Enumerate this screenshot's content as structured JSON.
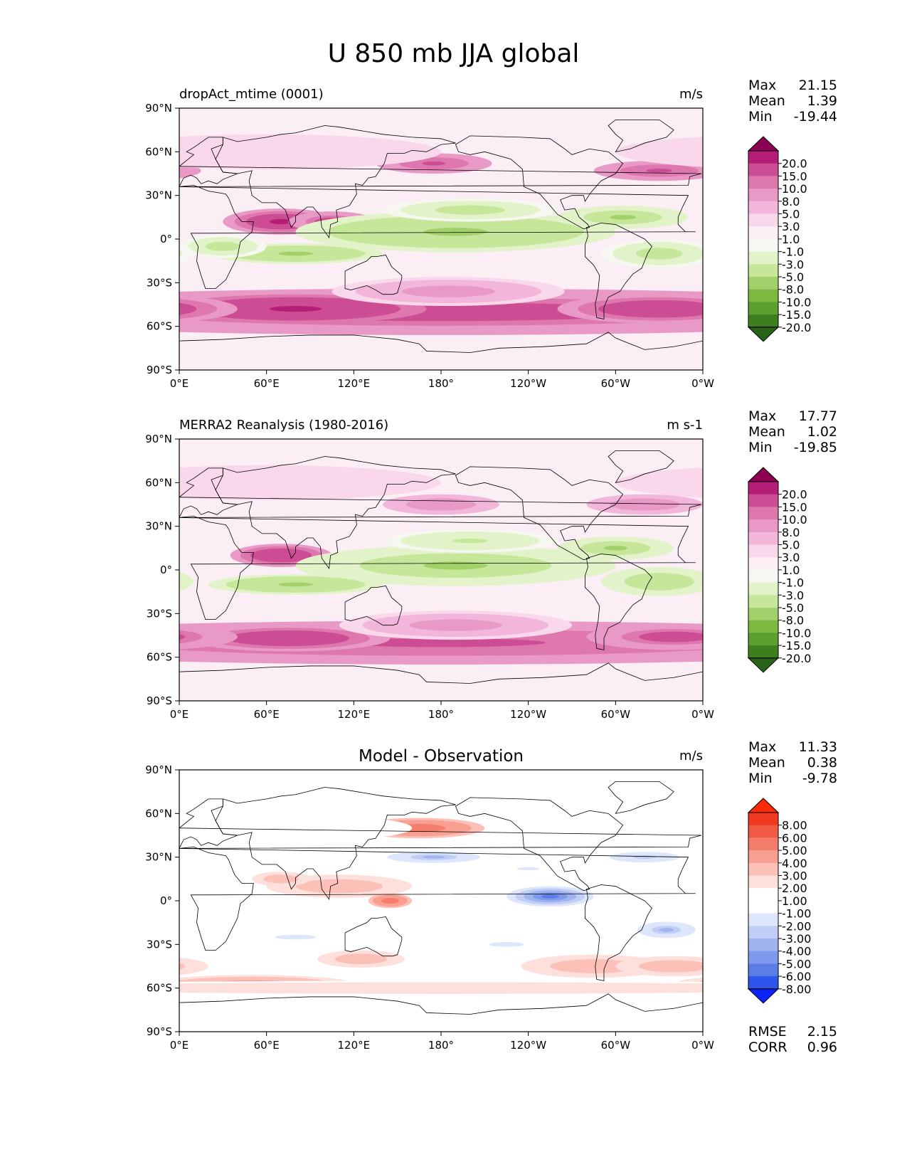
{
  "figure_title": "U 850 mb JJA global",
  "colors": {
    "div_pg": [
      "#276419",
      "#3f7e1f",
      "#5c9e30",
      "#7db940",
      "#a2d06b",
      "#c6e69a",
      "#e2f3c9",
      "#f5f7f0",
      "#fbeef5",
      "#f8d8ea",
      "#f1b6da",
      "#e899c6",
      "#de77ae",
      "#cc4d94",
      "#b51e76",
      "#8e0152"
    ],
    "diff": [
      "#0b24fb",
      "#2e55ee",
      "#5b7ee6",
      "#7f9aec",
      "#a0b4f0",
      "#c0cef6",
      "#dde6fb",
      "#ffffff",
      "#ffffff",
      "#fde0dc",
      "#fcc0b8",
      "#f99f91",
      "#f57d6b",
      "#f25944",
      "#ef3a20",
      "#fb2b08"
    ],
    "land": "#f7f7f4"
  },
  "chart_data": [
    {
      "type": "heatmap",
      "title_left": "dropAct_mtime (0001)",
      "title_center": "",
      "units": "m/s",
      "stats": [
        {
          "label": "Max",
          "value": "21.15"
        },
        {
          "label": "Mean",
          "value": "1.39"
        },
        {
          "label": "Min",
          "value": "-19.44"
        }
      ],
      "colorbar_levels": [
        "20.0",
        "15.0",
        "10.0",
        "8.0",
        "5.0",
        "3.0",
        "1.0",
        "-1.0",
        "-3.0",
        "-5.0",
        "-8.0",
        "-10.0",
        "-15.0",
        "-20.0"
      ],
      "colorbar_palette": "div_pg",
      "x_ticks": [
        "0°E",
        "60°E",
        "120°E",
        "180°",
        "120°W",
        "60°W",
        "0°W"
      ],
      "y_ticks": [
        "90°N",
        "60°N",
        "30°N",
        "0°",
        "30°S",
        "60°S",
        "90°S"
      ],
      "xlim": [
        0,
        360
      ],
      "ylim": [
        -90,
        90
      ],
      "footer_stats": [],
      "features": [
        {
          "lon": 180,
          "lat": -50,
          "dlon": 360,
          "dlat": 16,
          "value": 12
        },
        {
          "lon": 80,
          "lat": -48,
          "dlon": 90,
          "dlat": 10,
          "value": 17
        },
        {
          "lon": 330,
          "lat": -48,
          "dlon": 70,
          "dlat": 10,
          "value": 14
        },
        {
          "lon": 185,
          "lat": -36,
          "dlon": 80,
          "dlat": 10,
          "value": 6
        },
        {
          "lon": 70,
          "lat": 12,
          "dlon": 40,
          "dlat": 9,
          "value": 16
        },
        {
          "lon": 105,
          "lat": 12,
          "dlon": 30,
          "dlat": 7,
          "value": 12
        },
        {
          "lon": 190,
          "lat": 5,
          "dlon": 110,
          "dlat": 14,
          "value": -9
        },
        {
          "lon": 200,
          "lat": 20,
          "dlon": 60,
          "dlat": 8,
          "value": -6
        },
        {
          "lon": 80,
          "lat": -10,
          "dlon": 60,
          "dlat": 7,
          "value": -9
        },
        {
          "lon": 30,
          "lat": -5,
          "dlon": 30,
          "dlat": 8,
          "value": -6
        },
        {
          "lon": 305,
          "lat": 15,
          "dlon": 45,
          "dlat": 8,
          "value": -8
        },
        {
          "lon": 330,
          "lat": -10,
          "dlon": 40,
          "dlat": 10,
          "value": -6
        },
        {
          "lon": 175,
          "lat": 52,
          "dlon": 40,
          "dlat": 7,
          "value": 11
        },
        {
          "lon": 330,
          "lat": 47,
          "dlon": 45,
          "dlat": 7,
          "value": 11
        },
        {
          "lon": 60,
          "lat": 60,
          "dlon": 120,
          "dlat": 12,
          "value": 3
        }
      ]
    },
    {
      "type": "heatmap",
      "title_left": "MERRA2 Reanalysis (1980-2016)",
      "title_center": "",
      "units": "m s-1",
      "stats": [
        {
          "label": "Max",
          "value": "17.77"
        },
        {
          "label": "Mean",
          "value": "1.02"
        },
        {
          "label": "Min",
          "value": "-19.85"
        }
      ],
      "colorbar_levels": [
        "20.0",
        "15.0",
        "10.0",
        "8.0",
        "5.0",
        "3.0",
        "1.0",
        "-1.0",
        "-3.0",
        "-5.0",
        "-8.0",
        "-10.0",
        "-15.0",
        "-20.0"
      ],
      "colorbar_palette": "div_pg",
      "x_ticks": [
        "0°E",
        "60°E",
        "120°E",
        "180°",
        "120°W",
        "60°W",
        "0°W"
      ],
      "y_ticks": [
        "90°N",
        "60°N",
        "30°N",
        "0°",
        "30°S",
        "60°S",
        "90°S"
      ],
      "xlim": [
        0,
        360
      ],
      "ylim": [
        -90,
        90
      ],
      "footer_stats": [],
      "features": [
        {
          "lon": 180,
          "lat": -50,
          "dlon": 360,
          "dlat": 15,
          "value": 11
        },
        {
          "lon": 75,
          "lat": -47,
          "dlon": 70,
          "dlat": 9,
          "value": 15
        },
        {
          "lon": 340,
          "lat": -46,
          "dlon": 60,
          "dlat": 9,
          "value": 12
        },
        {
          "lon": 190,
          "lat": -38,
          "dlon": 80,
          "dlat": 10,
          "value": 6
        },
        {
          "lon": 70,
          "lat": 10,
          "dlon": 35,
          "dlat": 8,
          "value": 14
        },
        {
          "lon": 190,
          "lat": 3,
          "dlon": 110,
          "dlat": 14,
          "value": -8
        },
        {
          "lon": 200,
          "lat": 20,
          "dlon": 60,
          "dlat": 8,
          "value": -5
        },
        {
          "lon": 80,
          "lat": -10,
          "dlon": 60,
          "dlat": 7,
          "value": -9
        },
        {
          "lon": 300,
          "lat": 15,
          "dlon": 40,
          "dlat": 8,
          "value": -8
        },
        {
          "lon": 330,
          "lat": -8,
          "dlon": 40,
          "dlat": 10,
          "value": -7
        },
        {
          "lon": 180,
          "lat": 45,
          "dlon": 40,
          "dlat": 7,
          "value": 8
        },
        {
          "lon": 320,
          "lat": 45,
          "dlon": 40,
          "dlat": 7,
          "value": 8
        },
        {
          "lon": 60,
          "lat": 60,
          "dlon": 120,
          "dlat": 12,
          "value": 3
        }
      ]
    },
    {
      "type": "heatmap",
      "title_left": "",
      "title_center": "Model - Observation",
      "units": "m/s",
      "stats": [
        {
          "label": "Max",
          "value": "11.33"
        },
        {
          "label": "Mean",
          "value": "0.38"
        },
        {
          "label": "Min",
          "value": "-9.78"
        }
      ],
      "colorbar_levels": [
        "8.00",
        "6.00",
        "5.00",
        "4.00",
        "3.00",
        "2.00",
        "1.00",
        "-1.00",
        "-2.00",
        "-3.00",
        "-4.00",
        "-5.00",
        "-6.00",
        "-8.00"
      ],
      "colorbar_palette": "diff",
      "x_ticks": [
        "0°E",
        "60°E",
        "120°E",
        "180°",
        "120°W",
        "60°W",
        "0°W"
      ],
      "y_ticks": [
        "90°N",
        "60°N",
        "30°N",
        "0°",
        "30°S",
        "60°S",
        "90°S"
      ],
      "xlim": [
        0,
        360
      ],
      "ylim": [
        -90,
        90
      ],
      "footer_stats": [
        {
          "label": "RMSE",
          "value": "2.15"
        },
        {
          "label": "CORR",
          "value": "0.96"
        }
      ],
      "features": [
        {
          "lon": 165,
          "lat": 50,
          "dlon": 45,
          "dlat": 7,
          "value": 5
        },
        {
          "lon": 175,
          "lat": 30,
          "dlon": 40,
          "dlat": 5,
          "value": -4
        },
        {
          "lon": 255,
          "lat": 3,
          "dlon": 30,
          "dlat": 7,
          "value": -6
        },
        {
          "lon": 335,
          "lat": -20,
          "dlon": 25,
          "dlat": 7,
          "value": -4
        },
        {
          "lon": 50,
          "lat": -57,
          "dlon": 70,
          "dlat": 6,
          "value": 4
        },
        {
          "lon": 180,
          "lat": -60,
          "dlon": 360,
          "dlat": 5,
          "value": 2
        },
        {
          "lon": 285,
          "lat": -45,
          "dlon": 50,
          "dlat": 8,
          "value": 3
        },
        {
          "lon": 110,
          "lat": 10,
          "dlon": 50,
          "dlat": 8,
          "value": 3
        },
        {
          "lon": 145,
          "lat": 0,
          "dlon": 15,
          "dlat": 5,
          "value": 5
        },
        {
          "lon": 70,
          "lat": 15,
          "dlon": 20,
          "dlat": 5,
          "value": 3
        },
        {
          "lon": 240,
          "lat": 22,
          "dlon": 40,
          "dlat": 5,
          "value": -2
        },
        {
          "lon": 320,
          "lat": 30,
          "dlon": 40,
          "dlat": 6,
          "value": -3
        },
        {
          "lon": 80,
          "lat": -25,
          "dlon": 70,
          "dlat": 8,
          "value": -2
        },
        {
          "lon": 225,
          "lat": -30,
          "dlon": 60,
          "dlat": 8,
          "value": -2
        },
        {
          "lon": 125,
          "lat": -40,
          "dlon": 30,
          "dlat": 6,
          "value": 3
        },
        {
          "lon": 340,
          "lat": -45,
          "dlon": 40,
          "dlat": 7,
          "value": 3
        },
        {
          "lon": 100,
          "lat": 50,
          "dlon": 60,
          "dlat": 8,
          "value": -1.5
        }
      ]
    }
  ]
}
